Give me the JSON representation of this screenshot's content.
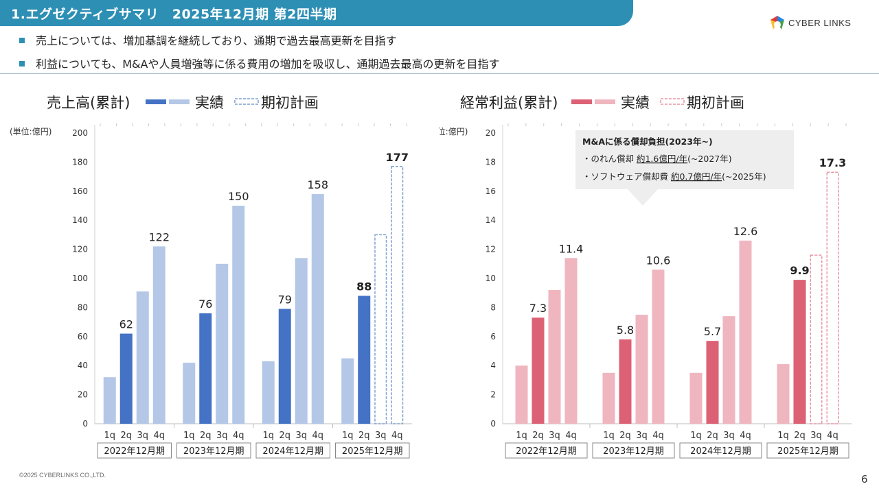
{
  "header": {
    "title": "1.エグゼクティブサマリ　2025年12月期 第2四半期",
    "logo_text": "CYBER LINKS"
  },
  "bullets": [
    "売上については、増加基調を継続しており、通期で過去最高更新を目指す",
    "利益についても、M&Aや人員増強等に係る費用の増加を吸収し、通期過去最高の更新を目指す"
  ],
  "footer": {
    "copyright": "©2025 CYBERLINKS CO.,LTD.",
    "page": "6"
  },
  "colors": {
    "title_bar": "#2e8fb5",
    "sales_actual_dark": "#4472c4",
    "sales_actual_light": "#b4c7e7",
    "sales_plan": "#7f9fcf",
    "profit_actual_dark": "#dc6174",
    "profit_actual_light": "#efb6bf",
    "profit_plan": "#e995a4"
  },
  "chart_data": [
    {
      "type": "bar",
      "title": "売上高(累計)",
      "unit": "(単位:億円)",
      "legend": {
        "actual": "実績",
        "plan": "期初計画"
      },
      "ylim": [
        0,
        200
      ],
      "yticks": [
        0,
        20,
        40,
        60,
        80,
        100,
        120,
        140,
        160,
        180,
        200
      ],
      "quarter_labels": [
        "1q",
        "2q",
        "3q",
        "4q"
      ],
      "groups": [
        {
          "label": "2022年12月期",
          "values": [
            32,
            62,
            91,
            122
          ],
          "plan": [
            null,
            null,
            null,
            null
          ],
          "labels": [
            "",
            "62",
            "",
            "122"
          ]
        },
        {
          "label": "2023年12月期",
          "values": [
            42,
            76,
            110,
            150
          ],
          "plan": [
            null,
            null,
            null,
            null
          ],
          "labels": [
            "",
            "76",
            "",
            "150"
          ]
        },
        {
          "label": "2024年12月期",
          "values": [
            43,
            79,
            114,
            158
          ],
          "plan": [
            null,
            null,
            null,
            null
          ],
          "labels": [
            "",
            "79",
            "",
            "158"
          ]
        },
        {
          "label": "2025年12月期",
          "values": [
            45,
            88,
            null,
            null
          ],
          "plan": [
            null,
            null,
            130,
            177
          ],
          "labels": [
            "",
            "88",
            "",
            "177"
          ]
        }
      ]
    },
    {
      "type": "bar",
      "title": "経常利益(累計)",
      "unit": "(単位:億円)",
      "legend": {
        "actual": "実績",
        "plan": "期初計画"
      },
      "ylim": [
        0,
        20
      ],
      "yticks": [
        0,
        2,
        4,
        6,
        8,
        10,
        12,
        14,
        16,
        18,
        20
      ],
      "quarter_labels": [
        "1q",
        "2q",
        "3q",
        "4q"
      ],
      "groups": [
        {
          "label": "2022年12月期",
          "values": [
            4.0,
            7.3,
            9.2,
            11.4
          ],
          "plan": [
            null,
            null,
            null,
            null
          ],
          "labels": [
            "",
            "7.3",
            "",
            "11.4"
          ]
        },
        {
          "label": "2023年12月期",
          "values": [
            3.5,
            5.8,
            7.5,
            10.6
          ],
          "plan": [
            null,
            null,
            null,
            null
          ],
          "labels": [
            "",
            "5.8",
            "",
            "10.6"
          ]
        },
        {
          "label": "2024年12月期",
          "values": [
            3.5,
            5.7,
            7.4,
            12.6
          ],
          "plan": [
            null,
            null,
            null,
            null
          ],
          "labels": [
            "",
            "5.7",
            "",
            "12.6"
          ]
        },
        {
          "label": "2025年12月期",
          "values": [
            4.1,
            9.9,
            null,
            null
          ],
          "plan": [
            null,
            null,
            11.6,
            17.3
          ],
          "labels": [
            "",
            "9.9",
            "",
            "17.3"
          ]
        }
      ],
      "annotation": {
        "title": "M&Aに係る償却負担(2023年~)",
        "lines": [
          {
            "prefix": "・のれん償却 ",
            "amount": "約1.6億円/年",
            "suffix": "(~2027年)"
          },
          {
            "prefix": "・ソフトウェア償却費 ",
            "amount": "約0.7億円/年",
            "suffix": "(~2025年)"
          }
        ]
      }
    }
  ]
}
